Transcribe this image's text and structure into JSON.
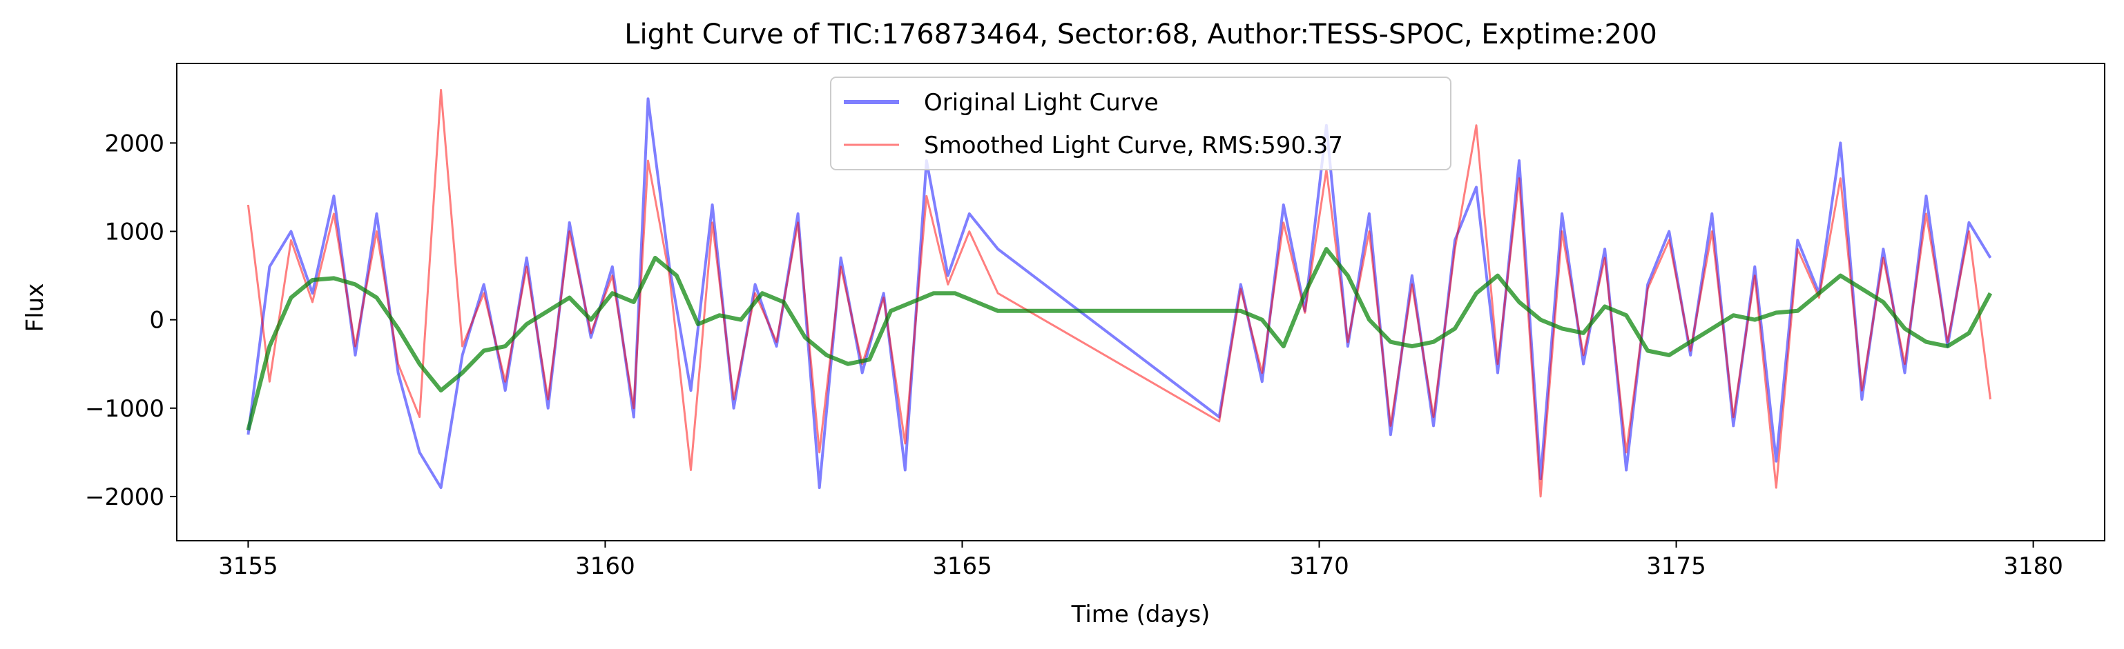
{
  "chart_data": {
    "type": "line",
    "title": "Light Curve of TIC:176873464, Sector:68, Author:TESS-SPOC, Exptime:200",
    "xlabel": "Time (days)",
    "ylabel": "Flux",
    "xlim": [
      3154.0,
      3181.0
    ],
    "ylim": [
      -2500,
      2900
    ],
    "x_ticks": [
      3155,
      3160,
      3165,
      3170,
      3175,
      3180
    ],
    "y_ticks": [
      -2000,
      -1000,
      0,
      1000,
      2000
    ],
    "x_tick_labels": [
      "3155",
      "3160",
      "3165",
      "3170",
      "3175",
      "3180"
    ],
    "y_tick_labels": [
      "−2000",
      "−1000",
      "0",
      "1000",
      "2000"
    ],
    "grid": false,
    "legend_position": "upper-center",
    "data_gap": [
      3165.6,
      3168.6
    ],
    "series": [
      {
        "name": "Original Light Curve",
        "color": "#0000ff",
        "opacity": 0.5,
        "x": [
          3155.0,
          3155.3,
          3155.6,
          3155.9,
          3156.2,
          3156.5,
          3156.8,
          3157.1,
          3157.4,
          3157.7,
          3158.0,
          3158.3,
          3158.6,
          3158.9,
          3159.2,
          3159.5,
          3159.8,
          3160.1,
          3160.4,
          3160.6,
          3160.9,
          3161.2,
          3161.5,
          3161.8,
          3162.1,
          3162.4,
          3162.7,
          3163.0,
          3163.3,
          3163.6,
          3163.9,
          3164.2,
          3164.5,
          3164.8,
          3165.1,
          3165.5,
          3168.6,
          3168.9,
          3169.2,
          3169.5,
          3169.8,
          3170.1,
          3170.4,
          3170.7,
          3171.0,
          3171.3,
          3171.6,
          3171.9,
          3172.2,
          3172.5,
          3172.8,
          3173.1,
          3173.4,
          3173.7,
          3174.0,
          3174.3,
          3174.6,
          3174.9,
          3175.2,
          3175.5,
          3175.8,
          3176.1,
          3176.4,
          3176.7,
          3177.0,
          3177.3,
          3177.6,
          3177.9,
          3178.2,
          3178.5,
          3178.8,
          3179.1,
          3179.4
        ],
        "y": [
          -1300,
          600,
          1000,
          300,
          1400,
          -400,
          1200,
          -600,
          -1500,
          -1900,
          -400,
          400,
          -800,
          700,
          -1000,
          1100,
          -200,
          600,
          -1100,
          2500,
          600,
          -800,
          1300,
          -1000,
          400,
          -300,
          1200,
          -1900,
          700,
          -600,
          300,
          -1700,
          1800,
          500,
          1200,
          800,
          -1100,
          400,
          -700,
          1300,
          100,
          2200,
          -300,
          1200,
          -1300,
          500,
          -1200,
          900,
          1500,
          -600,
          1800,
          -1800,
          1200,
          -500,
          800,
          -1700,
          400,
          1000,
          -400,
          1200,
          -1200,
          600,
          -1600,
          900,
          300,
          2000,
          -900,
          800,
          -600,
          1400,
          -300,
          1100,
          700
        ]
      },
      {
        "name": "Smoothed Light Curve, RMS:590.37",
        "color": "#ff0000",
        "opacity": 0.5,
        "x": [
          3155.0,
          3155.3,
          3155.6,
          3155.9,
          3156.2,
          3156.5,
          3156.8,
          3157.1,
          3157.4,
          3157.7,
          3158.0,
          3158.3,
          3158.6,
          3158.9,
          3159.2,
          3159.5,
          3159.8,
          3160.1,
          3160.4,
          3160.6,
          3160.9,
          3161.2,
          3161.5,
          3161.8,
          3162.1,
          3162.4,
          3162.7,
          3163.0,
          3163.3,
          3163.6,
          3163.9,
          3164.2,
          3164.5,
          3164.8,
          3165.1,
          3165.5,
          3168.6,
          3168.9,
          3169.2,
          3169.5,
          3169.8,
          3170.1,
          3170.4,
          3170.7,
          3171.0,
          3171.3,
          3171.6,
          3171.9,
          3172.2,
          3172.5,
          3172.8,
          3173.1,
          3173.4,
          3173.7,
          3174.0,
          3174.3,
          3174.6,
          3174.9,
          3175.2,
          3175.5,
          3175.8,
          3176.1,
          3176.4,
          3176.7,
          3177.0,
          3177.3,
          3177.6,
          3177.9,
          3178.2,
          3178.5,
          3178.8,
          3179.1,
          3179.4
        ],
        "y": [
          1300,
          -700,
          900,
          200,
          1200,
          -300,
          1000,
          -500,
          -1100,
          2600,
          -300,
          300,
          -700,
          600,
          -900,
          1000,
          -150,
          500,
          -1000,
          1800,
          500,
          -1700,
          1100,
          -900,
          300,
          -250,
          1100,
          -1500,
          600,
          -500,
          250,
          -1400,
          1400,
          400,
          1000,
          300,
          -1150,
          350,
          -600,
          1100,
          80,
          1700,
          -250,
          1000,
          -1200,
          400,
          -1100,
          800,
          2200,
          -500,
          1600,
          -2000,
          1000,
          -400,
          700,
          -1500,
          350,
          900,
          -350,
          1000,
          -1100,
          500,
          -1900,
          800,
          250,
          1600,
          -800,
          700,
          -500,
          1200,
          -250,
          1000,
          -900
        ]
      },
      {
        "name": "",
        "color": "#008000",
        "opacity": 0.7,
        "x": [
          3155.0,
          3155.3,
          3155.6,
          3155.9,
          3156.2,
          3156.5,
          3156.8,
          3157.1,
          3157.4,
          3157.7,
          3158.0,
          3158.3,
          3158.6,
          3158.9,
          3159.2,
          3159.5,
          3159.8,
          3160.1,
          3160.4,
          3160.7,
          3161.0,
          3161.3,
          3161.6,
          3161.9,
          3162.2,
          3162.5,
          3162.8,
          3163.1,
          3163.4,
          3163.7,
          3164.0,
          3164.3,
          3164.6,
          3164.9,
          3165.2,
          3165.5,
          3168.6,
          3168.9,
          3169.2,
          3169.5,
          3169.8,
          3170.1,
          3170.4,
          3170.7,
          3171.0,
          3171.3,
          3171.6,
          3171.9,
          3172.2,
          3172.5,
          3172.8,
          3173.1,
          3173.4,
          3173.7,
          3174.0,
          3174.3,
          3174.6,
          3174.9,
          3175.2,
          3175.5,
          3175.8,
          3176.1,
          3176.4,
          3176.7,
          3177.0,
          3177.3,
          3177.6,
          3177.9,
          3178.2,
          3178.5,
          3178.8,
          3179.1,
          3179.4
        ],
        "y": [
          -1250,
          -300,
          250,
          450,
          470,
          400,
          250,
          -100,
          -500,
          -800,
          -600,
          -350,
          -300,
          -50,
          100,
          250,
          0,
          300,
          200,
          700,
          500,
          -50,
          50,
          0,
          300,
          200,
          -200,
          -400,
          -500,
          -450,
          100,
          200,
          300,
          300,
          200,
          100,
          100,
          100,
          0,
          -300,
          300,
          800,
          500,
          0,
          -250,
          -300,
          -250,
          -100,
          300,
          500,
          200,
          0,
          -100,
          -150,
          150,
          50,
          -350,
          -400,
          -250,
          -100,
          50,
          0,
          80,
          100,
          300,
          500,
          350,
          200,
          -100,
          -250,
          -300,
          -150,
          300
        ]
      }
    ]
  }
}
